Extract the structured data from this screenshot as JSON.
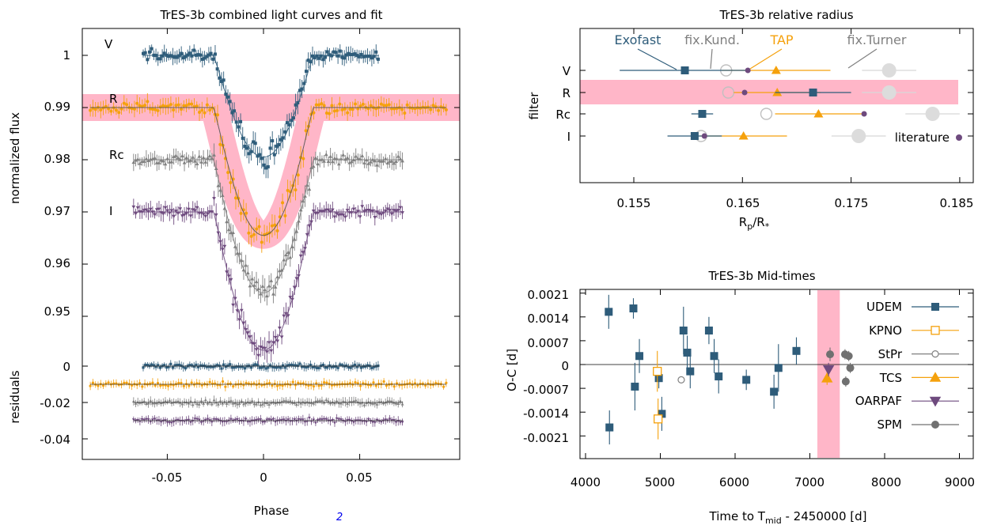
{
  "colors": {
    "udem": "#2e5c7a",
    "tap": "#f5a10c",
    "gray": "#808080",
    "oarpaf": "#6e4a7e",
    "spm": "#707070",
    "highlight": "#ffb6c8",
    "literature": "#6e4a7e"
  },
  "panel_lc": {
    "title": "TrES-3b combined light curves and fit",
    "xlabel": "Phase",
    "ylabel_top": "normalized flux",
    "ylabel_bottom": "residuals",
    "xticks": [
      "-0.05",
      "0",
      "0.05"
    ],
    "yticks_top": [
      "1",
      "0.99",
      "0.98",
      "0.97",
      "0.96",
      "0.95"
    ],
    "yticks_bottom": [
      "0",
      "-0.02",
      "-0.04"
    ],
    "curve_labels": [
      "V",
      "R",
      "Rc",
      "I"
    ],
    "footnote": "2"
  },
  "panel_radius": {
    "title": "TrES-3b relative radius",
    "xlabel_main": "R",
    "xlabel_sub1": "p",
    "xlabel_mid": "/R",
    "xlabel_sub2": "*",
    "ylabel": "filter",
    "xticks": [
      "0.155",
      "0.165",
      "0.175",
      "0.185"
    ],
    "filters": [
      "V",
      "R",
      "Rc",
      "I"
    ],
    "annotations": [
      "Exofast",
      "fix.Kund.",
      "TAP",
      "fix.Turner"
    ],
    "literature_label": "literature"
  },
  "panel_mid": {
    "title": "TrES-3b Mid-times",
    "ylabel": "O-C [d]",
    "xlabel_main": "Time to T",
    "xlabel_sub": "mid",
    "xlabel_rest": " - 2450000 [d]",
    "yticks": [
      "0.0021",
      "0.0014",
      "0.0007",
      "0",
      "-0.0007",
      "-0.0014",
      "-0.0021"
    ],
    "xticks": [
      "4000",
      "5000",
      "6000",
      "7000",
      "8000",
      "9000"
    ],
    "legend": [
      "UDEM",
      "KPNO",
      "StPr",
      "TCS",
      "OARPAF",
      "SPM"
    ]
  },
  "chart_data": [
    {
      "type": "scatter",
      "title": "TrES-3b combined light curves and fit",
      "xlabel": "Phase",
      "ylabel": "normalized flux",
      "xlim": [
        -0.09,
        0.095
      ],
      "ylim": [
        0.955,
        1.004
      ],
      "transit_depth": 0.028,
      "series": [
        {
          "name": "V",
          "baseline": 1.0,
          "phase_range": [
            -0.0625,
            0.06
          ],
          "residual_offset": 0.0
        },
        {
          "name": "R",
          "baseline": 0.99,
          "phase_range": [
            -0.09,
            0.095
          ],
          "residual_offset": -0.01
        },
        {
          "name": "Rc",
          "baseline": 0.98,
          "phase_range": [
            -0.0675,
            0.0725
          ],
          "residual_offset": -0.02
        },
        {
          "name": "I",
          "baseline": 0.97,
          "phase_range": [
            -0.0675,
            0.0725
          ],
          "residual_offset": -0.03
        }
      ],
      "fit_curves": [
        {
          "baseline": 1.0,
          "depth": 0.0195,
          "half_width": 0.026
        },
        {
          "baseline": 0.99,
          "depth": 0.0245,
          "half_width": 0.026
        },
        {
          "baseline": 0.98,
          "depth": 0.0255,
          "half_width": 0.026
        },
        {
          "baseline": 0.97,
          "depth": 0.0265,
          "half_width": 0.026
        }
      ]
    },
    {
      "type": "scatter",
      "title": "TrES-3b relative radius",
      "xlabel": "Rp/R*",
      "ylabel": "filter",
      "xlim": [
        0.15,
        0.193
      ],
      "categories": [
        "V",
        "R",
        "Rc",
        "I"
      ],
      "series": [
        {
          "name": "Exofast",
          "values": [
            0.1597,
            0.1715,
            0.1613,
            0.1606
          ],
          "errors": [
            0.006,
            0.0035,
            0.001,
            0.0025
          ]
        },
        {
          "name": "TAP",
          "values": [
            0.1681,
            0.1682,
            0.172,
            0.1651
          ],
          "errors": [
            0.005,
            0.004,
            0.004,
            0.004
          ]
        },
        {
          "name": "fix.Kund.",
          "values": [
            0.1635,
            0.1637,
            0.1672,
            0.1612
          ]
        },
        {
          "name": "fix.Turner",
          "values": [
            0.1785,
            0.1785,
            0.1825,
            0.1757
          ],
          "errors": [
            0.0025,
            0.0025,
            0.0025,
            0.0025
          ]
        },
        {
          "name": "literature",
          "values": [
            0.1655,
            0.1652,
            0.1762,
            0.1615
          ]
        }
      ],
      "highlight_category": "R"
    },
    {
      "type": "scatter",
      "title": "TrES-3b Mid-times",
      "xlabel": "Time to Tmid - 2450000 [d]",
      "ylabel": "O-C [d]",
      "xlim": [
        4000,
        9300
      ],
      "ylim": [
        -0.0026,
        0.0024
      ],
      "highlight_x": [
        7100,
        7400
      ],
      "series": [
        {
          "name": "UDEM",
          "points": [
            [
              4310,
              0.00155,
              0.0005
            ],
            [
              4320,
              -0.00185,
              0.0005
            ],
            [
              4640,
              0.00165,
              0.0003
            ],
            [
              4660,
              -0.00065,
              0.0007
            ],
            [
              4720,
              0.00025,
              0.0005
            ],
            [
              4980,
              -0.0004,
              0.0003
            ],
            [
              5020,
              -0.00145,
              0.0005
            ],
            [
              5310,
              0.001,
              0.0007
            ],
            [
              5360,
              0.00035,
              0.0005
            ],
            [
              5400,
              -0.0002,
              0.0005
            ],
            [
              5650,
              0.001,
              0.0004
            ],
            [
              5720,
              0.00025,
              0.0005
            ],
            [
              5780,
              -0.00035,
              0.0005
            ],
            [
              6150,
              -0.00045,
              0.0003
            ],
            [
              6520,
              -0.0008,
              0.0005
            ],
            [
              6580,
              -0.0001,
              0.0007
            ],
            [
              6820,
              0.0004,
              0.0004
            ]
          ]
        },
        {
          "name": "KPNO",
          "points": [
            [
              4960,
              -0.0002,
              0.0006
            ],
            [
              4970,
              -0.0016,
              0.0006
            ]
          ]
        },
        {
          "name": "StPr",
          "points": [
            [
              5280,
              -0.00045,
              0.0001
            ]
          ]
        },
        {
          "name": "TCS",
          "points": [
            [
              7230,
              -0.0004,
              0.0002
            ]
          ]
        },
        {
          "name": "OARPAF",
          "points": [
            [
              7250,
              -0.00015,
              0.0002
            ]
          ]
        },
        {
          "name": "SPM",
          "points": [
            [
              7270,
              0.0003,
              0.0002
            ],
            [
              7470,
              0.0003,
              0.00015
            ],
            [
              7520,
              0.00025,
              0.00015
            ],
            [
              7480,
              -0.0005,
              0.00015
            ],
            [
              7540,
              -0.0001,
              0.00015
            ]
          ]
        }
      ]
    }
  ]
}
